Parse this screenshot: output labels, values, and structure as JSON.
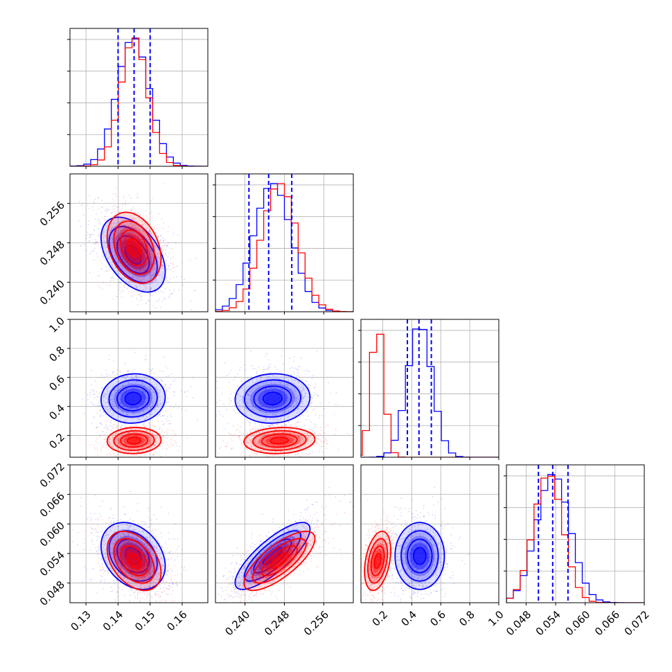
{
  "chart_data": {
    "type": "corner",
    "grid": true,
    "parameters": [
      {
        "range": [
          0.125,
          0.168
        ],
        "ticks": [
          0.13,
          0.14,
          0.15,
          0.16
        ],
        "tick_labels": [
          "0.13",
          "0.14",
          "0.15",
          "0.16"
        ]
      },
      {
        "range": [
          0.234,
          0.262
        ],
        "ticks": [
          0.24,
          0.248,
          0.256
        ],
        "tick_labels": [
          "0.240",
          "0.248",
          "0.256"
        ]
      },
      {
        "range": [
          0.05,
          1.0
        ],
        "ticks": [
          0.2,
          0.4,
          0.6,
          0.8,
          1.0
        ],
        "tick_labels": [
          "0.2",
          "0.4",
          "0.6",
          "0.8",
          "1.0"
        ]
      },
      {
        "range": [
          0.044,
          0.072
        ],
        "ticks": [
          0.048,
          0.054,
          0.06,
          0.066,
          0.072
        ],
        "tick_labels": [
          "0.048",
          "0.054",
          "0.060",
          "0.066",
          "0.072"
        ]
      }
    ],
    "series": [
      {
        "color": "#0000ff",
        "mean": [
          0.1447,
          0.2456,
          0.455,
          0.0535
        ],
        "std": [
          0.005,
          0.0038,
          0.085,
          0.0034
        ],
        "corr": [
          [
            0,
            1,
            -0.45
          ],
          [
            0,
            3,
            -0.3
          ],
          [
            1,
            3,
            0.8
          ],
          [
            0,
            2,
            0.05
          ],
          [
            1,
            2,
            0.05
          ],
          [
            2,
            3,
            0.0
          ]
        ],
        "quantile_lines": [
          [
            0.14,
            0.145,
            0.15
          ],
          [
            0.2408,
            0.2448,
            0.2495
          ],
          [
            0.37,
            0.45,
            0.535
          ],
          [
            0.0505,
            0.0534,
            0.0565
          ]
        ]
      },
      {
        "color": "#ff0000",
        "mean": [
          0.145,
          0.247,
          0.165,
          0.0525
        ],
        "std": [
          0.0042,
          0.0036,
          0.045,
          0.003
        ],
        "corr": [
          [
            0,
            1,
            -0.3
          ],
          [
            0,
            3,
            -0.4
          ],
          [
            1,
            3,
            0.75
          ],
          [
            0,
            2,
            0.05
          ],
          [
            1,
            2,
            0.1
          ],
          [
            2,
            3,
            0.35
          ]
        ],
        "quantile_lines": null
      }
    ]
  }
}
